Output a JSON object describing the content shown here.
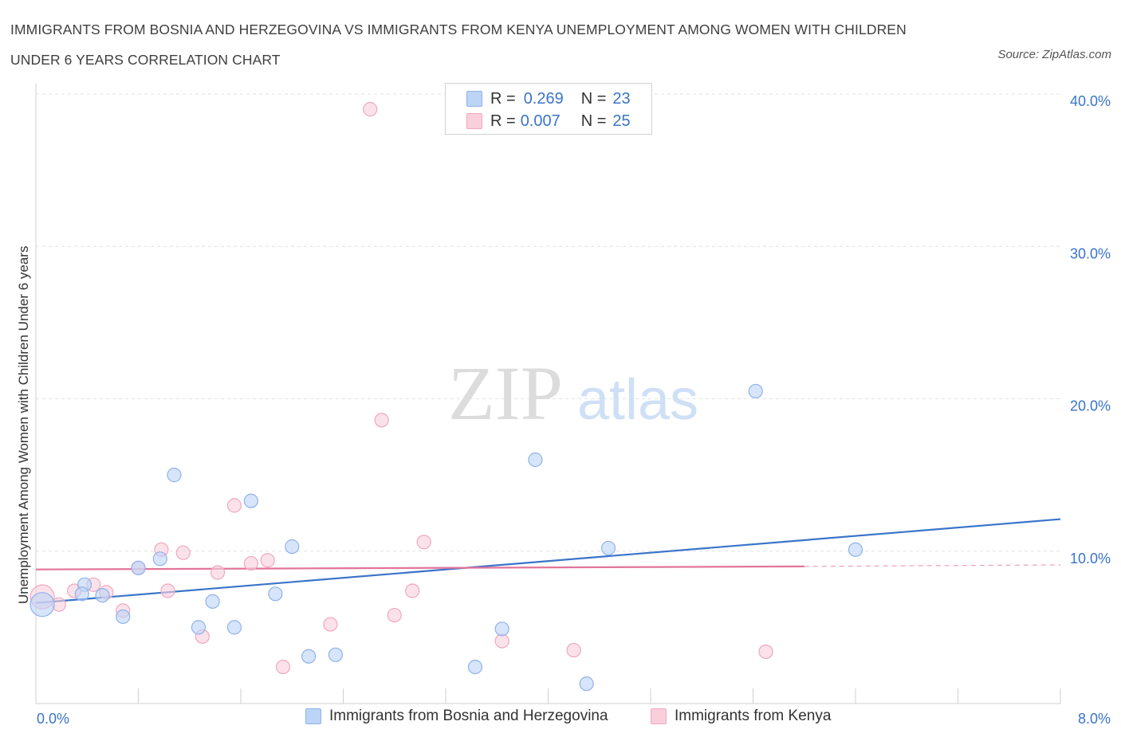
{
  "title": "IMMIGRANTS FROM BOSNIA AND HERZEGOVINA VS IMMIGRANTS FROM KENYA UNEMPLOYMENT AMONG WOMEN WITH CHILDREN UNDER 6 YEARS CORRELATION CHART",
  "source": "Source: ZipAtlas.com",
  "watermark": {
    "zip": "ZIP",
    "atlas": "atlas"
  },
  "legend": {
    "r_label": "R =",
    "n_label": "N =",
    "series": [
      {
        "name": "Immigrants from Bosnia and Herzegovina",
        "r": "0.269",
        "n": "23"
      },
      {
        "name": "Immigrants from Kenya",
        "r": "0.007",
        "n": "25"
      }
    ]
  },
  "chart_data": {
    "type": "scatter",
    "title": "IMMIGRANTS FROM BOSNIA AND HERZEGOVINA VS IMMIGRANTS FROM KENYA UNEMPLOYMENT AMONG WOMEN WITH CHILDREN UNDER 6 YEARS CORRELATION CHART",
    "xlabel": "",
    "ylabel": "Unemployment Among Women with Children Under 6 years",
    "xlim": [
      0,
      8
    ],
    "ylim": [
      0,
      40
    ],
    "x_tick_labels": [
      "0.0%",
      "8.0%"
    ],
    "y_ticks": [
      10,
      20,
      30,
      40
    ],
    "y_tick_labels": [
      "10.0%",
      "20.0%",
      "30.0%",
      "40.0%"
    ],
    "grid": true,
    "legend_position": "top-center",
    "colors": {
      "bosnia": "#3a74c9",
      "kenya": "#e2759a",
      "bosnia_fill": "#bcd4f6",
      "kenya_fill": "#f9cfdc",
      "axis_label": "#3a74c9"
    },
    "series": [
      {
        "name": "Immigrants from Bosnia and Herzegovina",
        "color": "#3a74c9",
        "points": [
          [
            0.05,
            6.5
          ],
          [
            0.38,
            7.8
          ],
          [
            0.36,
            7.2
          ],
          [
            0.52,
            7.1
          ],
          [
            0.68,
            5.7
          ],
          [
            0.8,
            8.9
          ],
          [
            0.97,
            9.5
          ],
          [
            1.08,
            15.0
          ],
          [
            1.27,
            5.0
          ],
          [
            1.38,
            6.7
          ],
          [
            1.55,
            5.0
          ],
          [
            1.68,
            13.3
          ],
          [
            1.87,
            7.2
          ],
          [
            2.0,
            10.3
          ],
          [
            2.13,
            3.1
          ],
          [
            2.34,
            3.2
          ],
          [
            3.43,
            2.4
          ],
          [
            3.64,
            4.9
          ],
          [
            3.9,
            16.0
          ],
          [
            4.3,
            1.3
          ],
          [
            4.47,
            10.2
          ],
          [
            5.62,
            20.5
          ],
          [
            6.4,
            10.1
          ]
        ],
        "trend": {
          "x": [
            0.0,
            8.0
          ],
          "y": [
            6.6,
            12.1
          ]
        }
      },
      {
        "name": "Immigrants from Kenya",
        "color": "#e2759a",
        "points": [
          [
            0.05,
            7.0
          ],
          [
            0.18,
            6.5
          ],
          [
            0.3,
            7.4
          ],
          [
            0.45,
            7.8
          ],
          [
            0.55,
            7.3
          ],
          [
            0.68,
            6.1
          ],
          [
            0.8,
            8.9
          ],
          [
            0.98,
            10.1
          ],
          [
            1.03,
            7.4
          ],
          [
            1.15,
            9.9
          ],
          [
            1.3,
            4.4
          ],
          [
            1.42,
            8.6
          ],
          [
            1.55,
            13.0
          ],
          [
            1.68,
            9.2
          ],
          [
            1.81,
            9.4
          ],
          [
            1.93,
            2.4
          ],
          [
            2.3,
            5.2
          ],
          [
            2.61,
            39.0
          ],
          [
            2.7,
            18.6
          ],
          [
            2.8,
            5.8
          ],
          [
            2.94,
            7.4
          ],
          [
            3.03,
            10.6
          ],
          [
            3.64,
            4.1
          ],
          [
            4.2,
            3.5
          ],
          [
            5.7,
            3.4
          ]
        ],
        "trend": {
          "x": [
            0.0,
            6.0
          ],
          "y": [
            8.8,
            9.0
          ]
        },
        "trend_dashed": {
          "x": [
            6.0,
            8.0
          ],
          "y": [
            9.0,
            9.1
          ]
        }
      }
    ]
  }
}
